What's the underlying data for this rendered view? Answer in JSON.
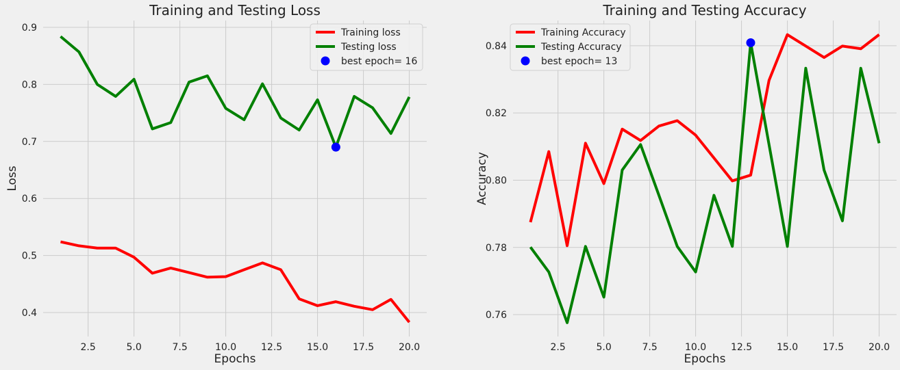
{
  "colors": {
    "background": "#f0f0f0",
    "grid": "#cbcbcb",
    "training": "#ff0000",
    "testing": "#008000",
    "best_marker": "#0000ff"
  },
  "chart_data": [
    {
      "type": "line",
      "title": "Training and Testing Loss",
      "xlabel": "Epochs",
      "ylabel": "Loss",
      "xlim": [
        0.05,
        20.95
      ],
      "ylim": [
        0.358,
        0.912
      ],
      "xticks": [
        "2.5",
        "5.0",
        "7.5",
        "10.0",
        "12.5",
        "15.0",
        "17.5",
        "20.0"
      ],
      "yticks": [
        "0.4",
        "0.5",
        "0.6",
        "0.7",
        "0.8",
        "0.9"
      ],
      "grid": true,
      "legend_position": "top-right",
      "x": [
        1,
        2,
        3,
        4,
        5,
        6,
        7,
        8,
        9,
        10,
        11,
        12,
        13,
        14,
        15,
        16,
        17,
        18,
        19,
        20
      ],
      "series": [
        {
          "name": "Training loss",
          "color": "#ff0000",
          "values": [
            0.524,
            0.517,
            0.513,
            0.513,
            0.497,
            0.469,
            0.478,
            0.47,
            0.462,
            0.463,
            0.475,
            0.487,
            0.475,
            0.424,
            0.412,
            0.419,
            0.411,
            0.405,
            0.423,
            0.383
          ]
        },
        {
          "name": "Testing loss",
          "color": "#008000",
          "values": [
            0.884,
            0.857,
            0.8,
            0.779,
            0.809,
            0.722,
            0.733,
            0.804,
            0.815,
            0.758,
            0.738,
            0.801,
            0.741,
            0.72,
            0.773,
            0.69,
            0.779,
            0.759,
            0.714,
            0.778
          ]
        }
      ],
      "best_point": {
        "label": "best epoch= 16",
        "x": 16,
        "y": 0.69
      }
    },
    {
      "type": "line",
      "title": "Training and Testing Accuracy",
      "xlabel": "Epochs",
      "ylabel": "Accuracy",
      "xlim": [
        0.05,
        20.95
      ],
      "ylim": [
        0.7535,
        0.8475
      ],
      "xticks": [
        "2.5",
        "5.0",
        "7.5",
        "10.0",
        "12.5",
        "15.0",
        "17.5",
        "20.0"
      ],
      "yticks": [
        "0.76",
        "0.78",
        "0.80",
        "0.82",
        "0.84"
      ],
      "grid": true,
      "legend_position": "top-left",
      "x": [
        1,
        2,
        3,
        4,
        5,
        6,
        7,
        8,
        9,
        10,
        11,
        12,
        13,
        14,
        15,
        16,
        17,
        18,
        19,
        20
      ],
      "series": [
        {
          "name": "Training Accuracy",
          "color": "#ff0000",
          "values": [
            0.7875,
            0.8085,
            0.7805,
            0.811,
            0.799,
            0.8152,
            0.8118,
            0.8161,
            0.8177,
            0.8134,
            0.8066,
            0.7998,
            0.8015,
            0.8297,
            0.8433,
            0.8399,
            0.8365,
            0.8399,
            0.8391,
            0.8433
          ]
        },
        {
          "name": "Testing Accuracy",
          "color": "#008000",
          "values": [
            0.7801,
            0.7727,
            0.7576,
            0.7803,
            0.7652,
            0.803,
            0.8106,
            0.7955,
            0.7803,
            0.7727,
            0.7955,
            0.7803,
            0.8409,
            0.8106,
            0.7803,
            0.8333,
            0.803,
            0.7879,
            0.8333,
            0.811
          ]
        }
      ],
      "best_point": {
        "label": "best epoch= 13",
        "x": 13,
        "y": 0.8409
      }
    }
  ]
}
